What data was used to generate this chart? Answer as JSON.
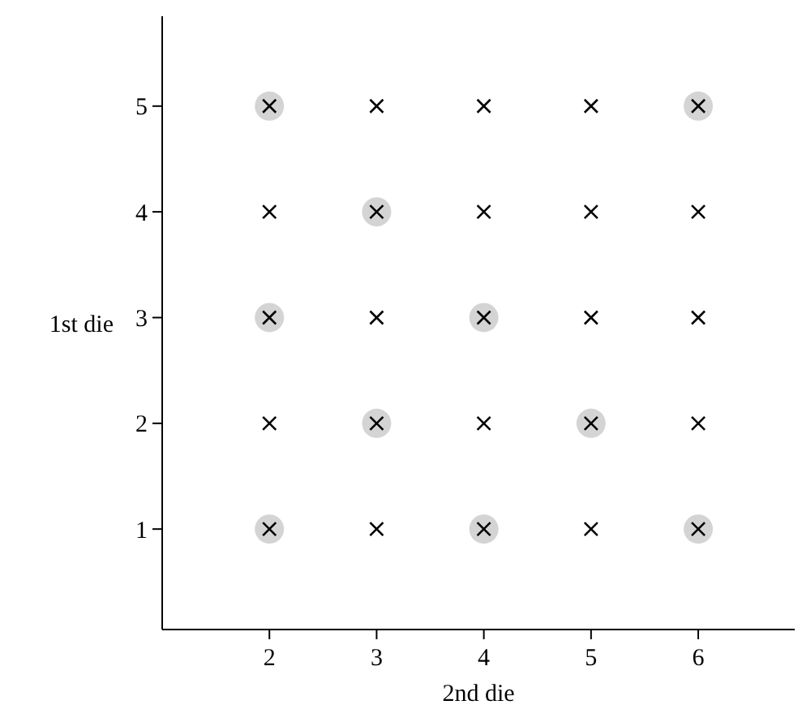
{
  "chart_data": {
    "type": "scatter",
    "xlabel": "2nd die",
    "ylabel": "1st die",
    "xlim": [
      1,
      6.9
    ],
    "ylim": [
      0.05,
      5.85
    ],
    "xticks": [
      2,
      3,
      4,
      5,
      6
    ],
    "yticks": [
      1,
      2,
      3,
      4,
      5
    ],
    "grid": false,
    "series": [
      {
        "color": "#d4d4d4",
        "marker": "circle",
        "x": [
          2,
          6,
          3,
          2,
          4,
          3,
          5,
          2,
          4,
          6
        ],
        "values": [
          5,
          5,
          4,
          3,
          3,
          2,
          2,
          1,
          1,
          1
        ]
      },
      {
        "color": "#000000",
        "marker": "cross",
        "x": [
          2,
          3,
          4,
          5,
          6,
          2,
          3,
          4,
          5,
          6,
          2,
          3,
          4,
          5,
          6,
          2,
          3,
          4,
          5,
          6,
          2,
          3,
          4,
          5,
          6
        ],
        "values": [
          5,
          5,
          5,
          5,
          5,
          4,
          4,
          4,
          4,
          4,
          3,
          3,
          3,
          3,
          3,
          2,
          2,
          2,
          2,
          2,
          1,
          1,
          1,
          1,
          1
        ]
      }
    ]
  }
}
